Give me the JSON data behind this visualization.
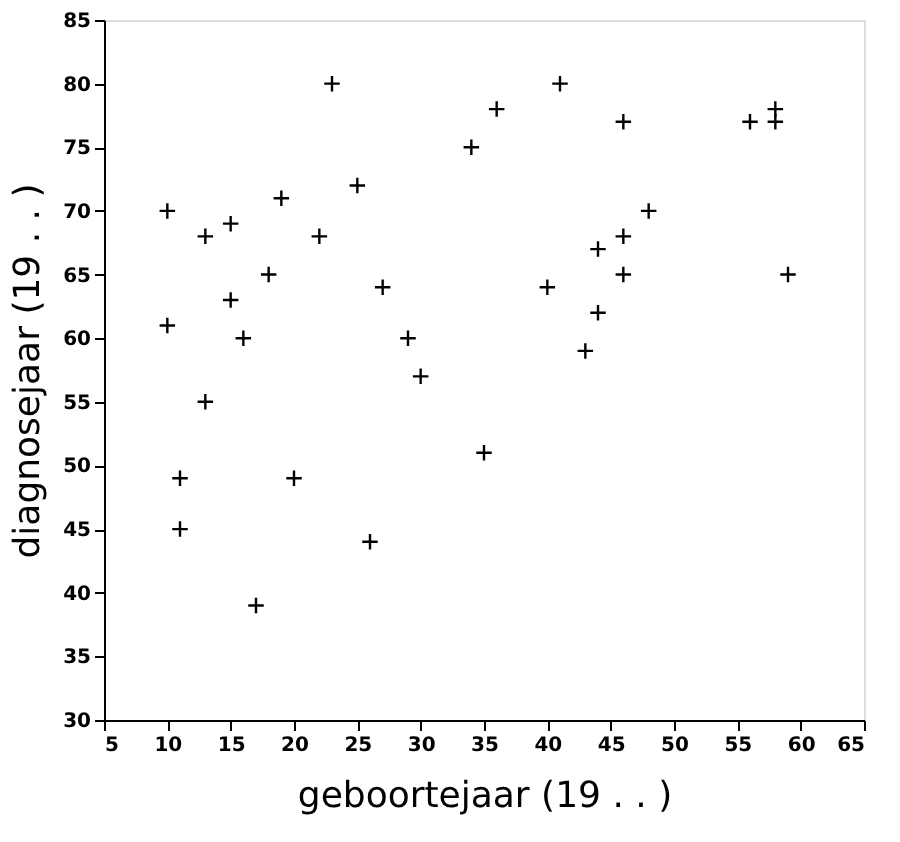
{
  "chart_data": {
    "type": "scatter",
    "xlabel": "geboortejaar (19 . . )",
    "ylabel": "diagnosejaar (19 . . )",
    "x": [
      10,
      10,
      11,
      11,
      13,
      13,
      15,
      15,
      16,
      17,
      18,
      19,
      20,
      22,
      23,
      25,
      26,
      27,
      29,
      30,
      34,
      35,
      36,
      40,
      41,
      43,
      44,
      44,
      46,
      46,
      46,
      48,
      56,
      58,
      58,
      59
    ],
    "series": [
      {
        "color": "#000000",
        "values": [
          70,
          61,
          49,
          45,
          68,
          55,
          69,
          63,
          60,
          39,
          65,
          71,
          49,
          68,
          80,
          72,
          44,
          64,
          60,
          57,
          75,
          51,
          78,
          64,
          80,
          59,
          62,
          67,
          65,
          68,
          77,
          70,
          77,
          77,
          78,
          65
        ]
      }
    ],
    "xlim": [
      5,
      65
    ],
    "xticks": [
      5,
      10,
      15,
      20,
      25,
      30,
      35,
      40,
      45,
      50,
      55,
      60,
      65
    ],
    "ylim": [
      30,
      85
    ],
    "yticks": [
      30,
      35,
      40,
      45,
      50,
      55,
      60,
      65,
      70,
      75,
      80,
      85
    ],
    "marker": "cross",
    "grid": false
  }
}
